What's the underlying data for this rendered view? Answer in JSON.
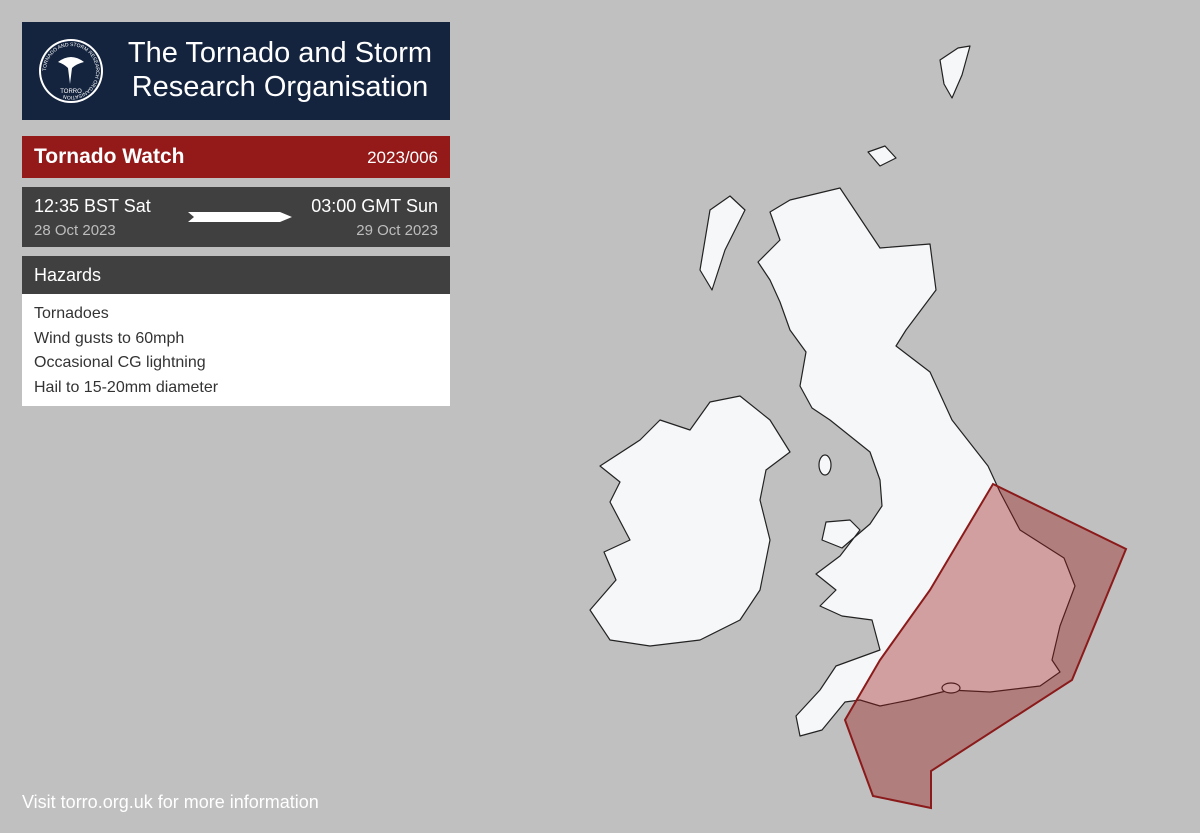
{
  "header": {
    "title": "The Tornado and Storm Research Organisation",
    "logo_ring_text": "TORNADO AND STORM RESEARCH ORGANISATION",
    "logo_label": "TORRO"
  },
  "watch": {
    "type": "Tornado Watch",
    "id": "2023/006",
    "start_time": "12:35 BST Sat",
    "start_date": "28 Oct 2023",
    "end_time": "03:00 GMT Sun",
    "end_date": "29 Oct 2023"
  },
  "hazards": {
    "heading": "Hazards",
    "items": [
      "Tornadoes",
      "Wind gusts to 60mph",
      "Occasional CG lightning",
      "Hail to 15-20mm diameter"
    ]
  },
  "footer": "Visit torro.org.uk for more information"
}
